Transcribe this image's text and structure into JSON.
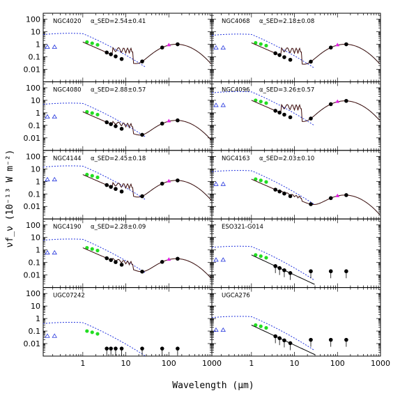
{
  "chart_data": {
    "type": "scatter",
    "xlabel": "Wavelength (μm)",
    "ylabel": "νf_ν (10⁻¹³ W m⁻²)",
    "xscale": "log",
    "yscale": "log",
    "xlim": [
      0.12,
      1000
    ],
    "ylim": [
      0.001,
      300
    ],
    "x_ticks": [
      "1",
      "10",
      "100",
      "1000"
    ],
    "y_ticks": [
      "0.01",
      "0.1",
      "1",
      "10",
      "100"
    ],
    "colors": {
      "stellar": "#2233dd",
      "uv": "#2233dd",
      "green": "#22dd22",
      "magenta": "#e020e0",
      "model": "#000000",
      "irs": "#cc2222"
    },
    "panels": [
      {
        "name": "NGC4020",
        "alpha": "α_SED=2.54±0.41",
        "green": 1.5,
        "scale": 1.0
      },
      {
        "name": "NGC4068",
        "alpha": "α_SED=2.18±0.08",
        "green": 1.3,
        "scale": 1.0
      },
      {
        "name": "NGC4080",
        "alpha": "α_SED=2.88±0.57",
        "green": 1.2,
        "scale": 0.25
      },
      {
        "name": "NGC4096",
        "alpha": "α_SED=3.26±0.57",
        "green": 10,
        "scale": 9.0
      },
      {
        "name": "NGC4144",
        "alpha": "α_SED=2.45±0.18",
        "green": 3.5,
        "scale": 1.2
      },
      {
        "name": "NGC4163",
        "alpha": "α_SED=2.03±0.10",
        "green": 1.5,
        "scale": 0.08
      },
      {
        "name": "NGC4190",
        "alpha": "α_SED=2.28±0.09",
        "green": 1.5,
        "scale": 0.2
      },
      {
        "name": "ESO321-G014",
        "alpha": "",
        "green": 0.4,
        "scale": 0
      },
      {
        "name": "UGC07242",
        "alpha": "",
        "green": 0.1,
        "scale": -1
      },
      {
        "name": "UGCA276",
        "alpha": "",
        "green": 0.3,
        "scale": 0
      }
    ]
  }
}
